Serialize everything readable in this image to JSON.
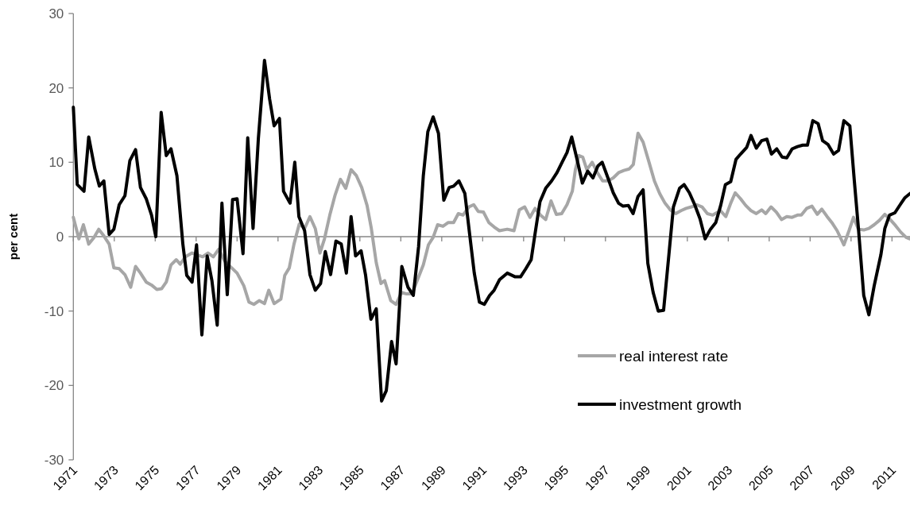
{
  "chart_data": {
    "type": "line",
    "ylabel": "per cent",
    "xlim": [
      1971,
      2011.88
    ],
    "xticks": [
      1971,
      1973,
      1975,
      1977,
      1979,
      1981,
      1983,
      1985,
      1987,
      1989,
      1991,
      1993,
      1995,
      1997,
      1999,
      2001,
      2003,
      2005,
      2007,
      2009,
      2011
    ],
    "ylim": [
      -30,
      30
    ],
    "yticks": [
      -30,
      -20,
      -10,
      0,
      10,
      20,
      30
    ],
    "legend": "right",
    "marker": "none",
    "line_style": "solid",
    "series": [
      {
        "name": "real interest rate",
        "color": "#a6a6a6",
        "x": [
          1971.0,
          1971.27,
          1971.49,
          1971.75,
          1972.01,
          1972.24,
          1972.49,
          1972.75,
          1972.98,
          1973.24,
          1973.52,
          1973.8,
          1974.04,
          1974.28,
          1974.56,
          1974.82,
          1975.08,
          1975.31,
          1975.54,
          1975.77,
          1976.03,
          1976.22,
          1976.48,
          1976.8,
          1977.32,
          1977.58,
          1977.84,
          1978.1,
          1978.4,
          1978.74,
          1979.0,
          1979.33,
          1979.58,
          1979.82,
          1980.08,
          1980.34,
          1980.55,
          1980.81,
          1981.14,
          1981.33,
          1981.55,
          1981.78,
          1982.04,
          1982.3,
          1982.56,
          1982.82,
          1983.05,
          1983.27,
          1983.53,
          1983.79,
          1984.05,
          1984.31,
          1984.57,
          1984.83,
          1985.09,
          1985.35,
          1985.56,
          1985.8,
          1986.03,
          1986.21,
          1986.51,
          1986.77,
          1987.03,
          1987.29,
          1987.54,
          1987.8,
          1988.1,
          1988.35,
          1988.58,
          1988.8,
          1989.06,
          1989.32,
          1989.58,
          1989.81,
          1990.04,
          1990.33,
          1990.56,
          1990.78,
          1991.04,
          1991.3,
          1991.56,
          1991.82,
          1992.2,
          1992.53,
          1992.79,
          1993.05,
          1993.31,
          1993.56,
          1993.82,
          1994.08,
          1994.34,
          1994.6,
          1994.86,
          1995.12,
          1995.38,
          1995.53,
          1995.7,
          1995.89,
          1996.09,
          1996.35,
          1996.61,
          1996.86,
          1997.12,
          1997.38,
          1997.64,
          1997.9,
          1998.16,
          1998.36,
          1998.59,
          1998.84,
          1999.13,
          1999.39,
          1999.65,
          1999.91,
          2000.17,
          2000.43,
          2000.69,
          2000.94,
          2001.2,
          2001.46,
          2001.72,
          2001.98,
          2002.24,
          2002.62,
          2002.88,
          2003.12,
          2003.34,
          2003.6,
          2003.85,
          2004.11,
          2004.37,
          2004.63,
          2004.83,
          2005.09,
          2005.35,
          2005.6,
          2005.86,
          2006.12,
          2006.38,
          2006.57,
          2006.83,
          2007.09,
          2007.35,
          2007.57,
          2007.83,
          2008.06,
          2008.32,
          2008.65,
          2008.9,
          2009.12,
          2009.36,
          2009.62,
          2009.87,
          2010.13,
          2010.39,
          2010.65,
          2010.91,
          2011.17,
          2011.43,
          2011.69,
          2011.88
        ],
        "values": [
          2.6,
          -0.3,
          1.6,
          -1.0,
          -0.1,
          1.0,
          0.1,
          -1.0,
          -4.2,
          -4.3,
          -5.1,
          -6.8,
          -4.0,
          -4.9,
          -6.1,
          -6.5,
          -7.1,
          -7.0,
          -6.1,
          -3.8,
          -3.1,
          -3.7,
          -2.7,
          -2.2,
          -2.7,
          -2.2,
          -2.7,
          -1.7,
          -3.3,
          -4.2,
          -4.9,
          -6.6,
          -8.8,
          -9.1,
          -8.6,
          -9.0,
          -7.2,
          -9.0,
          -8.4,
          -5.2,
          -4.2,
          -1.0,
          1.7,
          1.1,
          2.7,
          1.1,
          -2.2,
          -0.3,
          2.9,
          5.6,
          7.7,
          6.5,
          9.0,
          8.2,
          6.6,
          4.2,
          1.1,
          -3.5,
          -6.3,
          -5.9,
          -8.6,
          -9.1,
          -7.5,
          -7.7,
          -7.7,
          -5.9,
          -3.8,
          -1.1,
          -0.1,
          1.6,
          1.4,
          1.9,
          1.9,
          3.1,
          2.9,
          4.0,
          4.3,
          3.4,
          3.3,
          1.9,
          1.3,
          0.8,
          1.0,
          0.8,
          3.6,
          4.0,
          2.6,
          3.8,
          2.9,
          2.3,
          4.8,
          3.0,
          3.1,
          4.3,
          6.1,
          9.0,
          10.9,
          10.7,
          9.0,
          10.0,
          8.6,
          7.5,
          7.5,
          7.9,
          8.6,
          8.9,
          9.1,
          9.7,
          13.9,
          12.7,
          10.0,
          7.5,
          5.8,
          4.5,
          3.6,
          3.1,
          3.5,
          3.8,
          4.0,
          4.3,
          4.0,
          3.1,
          2.9,
          3.5,
          2.7,
          4.5,
          5.9,
          5.1,
          4.2,
          3.5,
          3.1,
          3.6,
          3.1,
          4.0,
          3.3,
          2.3,
          2.7,
          2.6,
          2.9,
          2.9,
          3.8,
          4.1,
          3.0,
          3.7,
          2.7,
          1.9,
          0.8,
          -1.1,
          0.8,
          2.6,
          1.0,
          0.9,
          1.1,
          1.6,
          2.2,
          3.0,
          2.3,
          1.5,
          0.6,
          -0.1,
          -0.3
        ]
      },
      {
        "name": "investment growth",
        "color": "#000000",
        "x": [
          1971.0,
          1971.19,
          1971.52,
          1971.75,
          1972.05,
          1972.27,
          1972.49,
          1972.75,
          1972.98,
          1973.24,
          1973.52,
          1973.76,
          1974.04,
          1974.28,
          1974.56,
          1974.82,
          1975.03,
          1975.29,
          1975.54,
          1975.77,
          1976.06,
          1976.35,
          1976.54,
          1976.8,
          1977.02,
          1977.28,
          1977.54,
          1977.77,
          1978.03,
          1978.26,
          1978.52,
          1978.78,
          1979.0,
          1979.29,
          1979.52,
          1979.78,
          1980.04,
          1980.34,
          1980.59,
          1980.81,
          1981.07,
          1981.27,
          1981.59,
          1981.82,
          1982.02,
          1982.3,
          1982.56,
          1982.82,
          1983.08,
          1983.31,
          1983.57,
          1983.83,
          1984.09,
          1984.34,
          1984.57,
          1984.79,
          1985.06,
          1985.28,
          1985.54,
          1985.8,
          1986.06,
          1986.29,
          1986.55,
          1986.77,
          1987.05,
          1987.35,
          1987.61,
          1987.87,
          1988.1,
          1988.32,
          1988.58,
          1988.84,
          1989.1,
          1989.36,
          1989.58,
          1989.84,
          1990.13,
          1990.36,
          1990.59,
          1990.84,
          1991.08,
          1991.34,
          1991.56,
          1991.82,
          1992.2,
          1992.59,
          1992.85,
          1993.11,
          1993.37,
          1993.56,
          1993.8,
          1994.08,
          1994.37,
          1994.63,
          1994.88,
          1995.12,
          1995.35,
          1995.61,
          1995.87,
          1996.13,
          1996.39,
          1996.63,
          1996.84,
          1997.12,
          1997.38,
          1997.64,
          1997.86,
          1998.12,
          1998.35,
          1998.59,
          1998.84,
          1999.07,
          1999.33,
          1999.58,
          1999.84,
          2000.1,
          2000.32,
          2000.62,
          2000.84,
          2001.1,
          2001.36,
          2001.62,
          2001.87,
          2002.13,
          2002.39,
          2002.63,
          2002.86,
          2003.12,
          2003.38,
          2003.6,
          2003.9,
          2004.11,
          2004.37,
          2004.63,
          2004.89,
          2005.11,
          2005.37,
          2005.63,
          2005.86,
          2006.12,
          2006.38,
          2006.64,
          2006.87,
          2007.13,
          2007.39,
          2007.61,
          2007.87,
          2008.15,
          2008.39,
          2008.65,
          2008.94,
          2009.16,
          2009.36,
          2009.62,
          2009.87,
          2010.13,
          2010.46,
          2010.65,
          2010.88,
          2011.14,
          2011.4,
          2011.62,
          2011.88
        ],
        "values": [
          17.4,
          7.0,
          6.1,
          13.4,
          9.1,
          6.8,
          7.5,
          0.3,
          1.0,
          4.3,
          5.5,
          10.2,
          11.7,
          6.6,
          5.1,
          2.9,
          0,
          16.7,
          10.9,
          11.8,
          8.2,
          -1.0,
          -5.2,
          -6.1,
          -1.1,
          -13.2,
          -2.6,
          -5.9,
          -11.9,
          4.5,
          -7.8,
          5.0,
          5.1,
          -2.3,
          13.3,
          1.1,
          13.2,
          23.7,
          18.5,
          14.9,
          15.9,
          6.1,
          4.5,
          10.0,
          2.7,
          0.8,
          -5.1,
          -7.2,
          -6.3,
          -2.0,
          -5.1,
          -0.6,
          -1.0,
          -4.9,
          2.7,
          -2.6,
          -1.9,
          -5.2,
          -11.1,
          -9.7,
          -22.1,
          -20.7,
          -14.1,
          -17.1,
          -4.0,
          -6.8,
          -7.9,
          -1.3,
          8.2,
          14.1,
          16.1,
          13.9,
          4.9,
          6.6,
          6.8,
          7.5,
          5.8,
          0.4,
          -4.9,
          -8.8,
          -9.1,
          -7.9,
          -7.2,
          -5.8,
          -4.9,
          -5.4,
          -5.4,
          -4.3,
          -3.1,
          0.4,
          4.7,
          6.5,
          7.5,
          8.6,
          10.0,
          11.3,
          13.4,
          10.4,
          7.2,
          8.8,
          7.9,
          9.5,
          10.0,
          7.9,
          5.9,
          4.5,
          4.1,
          4.2,
          3.1,
          5.4,
          6.3,
          -3.6,
          -7.5,
          -10.0,
          -9.9,
          -2.4,
          4.0,
          6.5,
          7.0,
          5.9,
          4.3,
          2.4,
          -0.3,
          1.0,
          1.9,
          4.2,
          7.0,
          7.4,
          10.4,
          11.1,
          12.0,
          13.6,
          11.9,
          12.9,
          13.1,
          11.1,
          11.8,
          10.7,
          10.6,
          11.8,
          12.1,
          12.3,
          12.3,
          15.6,
          15.2,
          12.9,
          12.4,
          11.1,
          11.6,
          15.6,
          14.9,
          7.5,
          1.1,
          -7.9,
          -10.5,
          -6.6,
          -2.4,
          1.1,
          2.9,
          3.2,
          4.3,
          5.2,
          5.8
        ]
      }
    ]
  }
}
